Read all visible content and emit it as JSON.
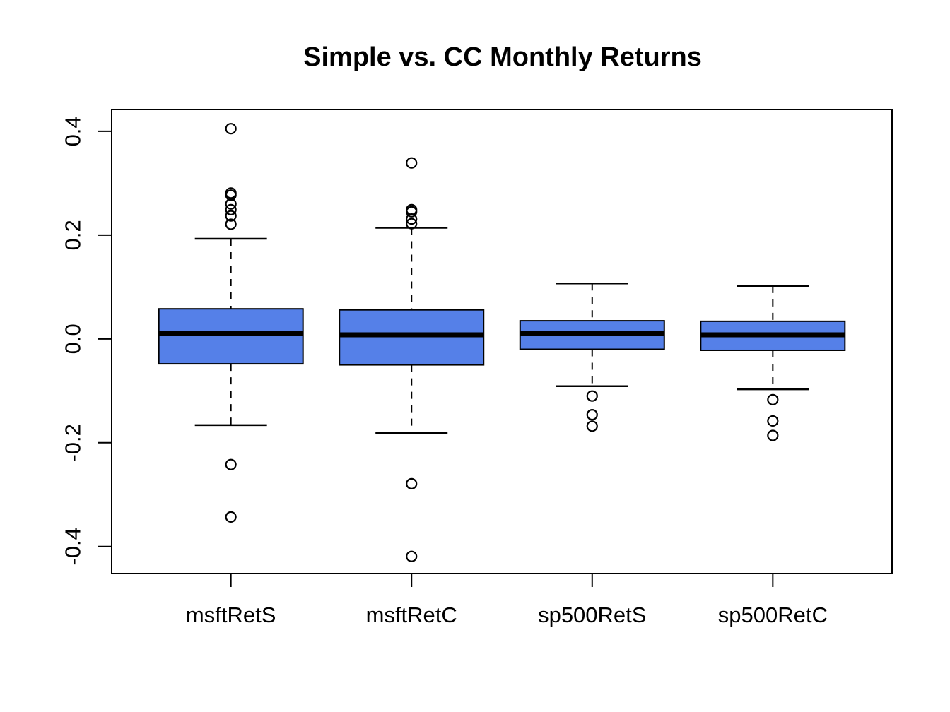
{
  "chart_data": {
    "type": "boxplot",
    "title": "Simple vs. CC Monthly Returns",
    "categories": [
      "msftRetS",
      "msftRetC",
      "sp500RetS",
      "sp500RetC"
    ],
    "y_axis": {
      "tick_values": [
        0.4,
        0.2,
        0.0,
        -0.2,
        -0.4
      ],
      "tick_labels": [
        "0.4",
        "0.2",
        "0.0",
        "-0.2",
        "-0.4"
      ],
      "range": [
        -0.452,
        0.442
      ]
    },
    "xlabel": "",
    "ylabel": "",
    "grid": false,
    "legend": false,
    "box_fill_color": "#5580E8",
    "box_border_color": "#000000",
    "median_color": "#000000",
    "series": [
      {
        "name": "msftRetS",
        "whisker_high": 0.193,
        "q3": 0.058,
        "median": 0.01,
        "q1": -0.048,
        "whisker_low": -0.166,
        "outliers": [
          0.405,
          0.281,
          0.277,
          0.26,
          0.249,
          0.237,
          0.221,
          -0.242,
          -0.343
        ]
      },
      {
        "name": "msftRetC",
        "whisker_high": 0.214,
        "q3": 0.056,
        "median": 0.008,
        "q1": -0.05,
        "whisker_low": -0.181,
        "outliers": [
          0.339,
          0.249,
          0.245,
          0.231,
          0.222,
          -0.279,
          -0.419
        ]
      },
      {
        "name": "sp500RetS",
        "whisker_high": 0.107,
        "q3": 0.035,
        "median": 0.01,
        "q1": -0.02,
        "whisker_low": -0.091,
        "outliers": [
          -0.11,
          -0.146,
          -0.168
        ]
      },
      {
        "name": "sp500RetC",
        "whisker_high": 0.102,
        "q3": 0.034,
        "median": 0.008,
        "q1": -0.022,
        "whisker_low": -0.097,
        "outliers": [
          -0.117,
          -0.158,
          -0.186
        ]
      }
    ]
  }
}
